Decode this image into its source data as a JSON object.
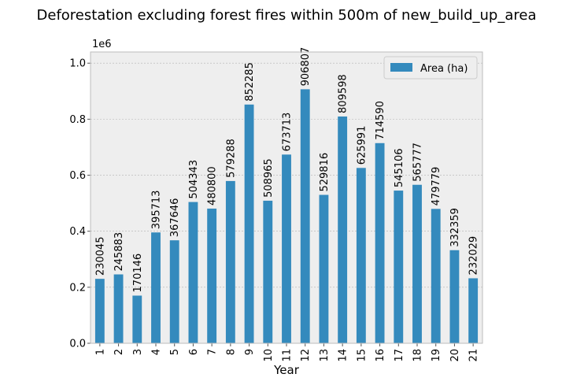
{
  "chart_data": {
    "type": "bar",
    "title": "Deforestation excluding forest fires within 500m of new_build_up_area",
    "xlabel": "Year",
    "ylabel": "",
    "y_offset_label": "1e6",
    "categories": [
      "1",
      "2",
      "3",
      "4",
      "5",
      "6",
      "7",
      "8",
      "9",
      "10",
      "11",
      "12",
      "13",
      "14",
      "15",
      "16",
      "17",
      "18",
      "19",
      "20",
      "21"
    ],
    "series": [
      {
        "name": "Area (ha)",
        "values": [
          230045,
          245883,
          170146,
          395713,
          367646,
          504343,
          480800,
          579288,
          852285,
          508965,
          673713,
          906807,
          529816,
          809598,
          625991,
          714590,
          545106,
          565777,
          479779,
          332359,
          232029
        ],
        "color": "#348abd"
      }
    ],
    "data_labels": [
      "230045",
      "245883",
      "170146",
      "395713",
      "367646",
      "504343",
      "480800",
      "579288",
      "852285",
      "508965",
      "673713",
      "906807",
      "529816",
      "809598",
      "625991",
      "714590",
      "545106",
      "565777",
      "479779",
      "332359",
      "232029"
    ],
    "ylim": [
      0,
      1.04
    ],
    "yticks": [
      "0.0",
      "0.2",
      "0.4",
      "0.6",
      "0.8",
      "1.0"
    ],
    "grid": true,
    "legend_position": "top-right",
    "colors": {
      "plot_background": "#eeeeee",
      "grid": "#b2b2b2",
      "frame": "#bcbcbc",
      "bar": "#348abd"
    }
  }
}
